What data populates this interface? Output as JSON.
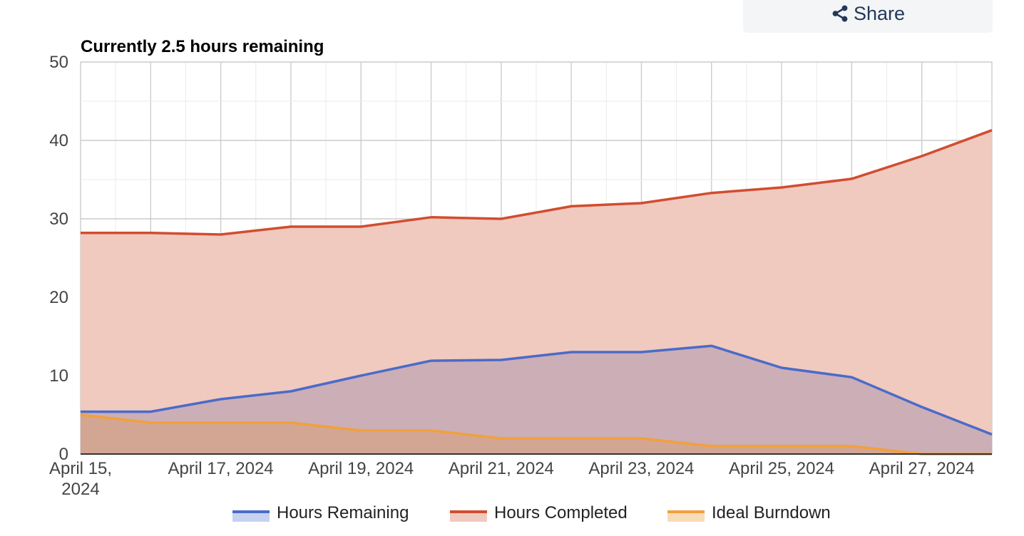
{
  "share": {
    "label": "Share",
    "icon": "share-icon"
  },
  "chart_data": {
    "type": "area",
    "title": "Currently 2.5 hours remaining",
    "xlabel": "",
    "ylabel": "",
    "ylim": [
      0,
      50
    ],
    "yticks": [
      0,
      10,
      20,
      30,
      40,
      50
    ],
    "grid": true,
    "legend_position": "bottom",
    "x": [
      "2024-04-15",
      "2024-04-16",
      "2024-04-17",
      "2024-04-18",
      "2024-04-19",
      "2024-04-20",
      "2024-04-21",
      "2024-04-22",
      "2024-04-23",
      "2024-04-24",
      "2024-04-25",
      "2024-04-26",
      "2024-04-27",
      "2024-04-28"
    ],
    "xtick_labels": [
      {
        "date": "2024-04-15",
        "lines": [
          "April 15,",
          "2024"
        ]
      },
      {
        "date": "2024-04-17",
        "lines": [
          "April 17, 2024"
        ]
      },
      {
        "date": "2024-04-19",
        "lines": [
          "April 19, 2024"
        ]
      },
      {
        "date": "2024-04-21",
        "lines": [
          "April 21, 2024"
        ]
      },
      {
        "date": "2024-04-23",
        "lines": [
          "April 23, 2024"
        ]
      },
      {
        "date": "2024-04-25",
        "lines": [
          "April 25, 2024"
        ]
      },
      {
        "date": "2024-04-27",
        "lines": [
          "April 27, 2024"
        ]
      }
    ],
    "series": [
      {
        "name": "Hours Completed",
        "color": "#d14d2f",
        "fill": "#f0c9bf",
        "values": [
          28.2,
          28.2,
          28.0,
          29.0,
          29.0,
          30.2,
          30.0,
          31.6,
          32.0,
          33.3,
          34.0,
          35.1,
          38.0,
          41.3
        ]
      },
      {
        "name": "Hours Remaining",
        "color": "#4a6bc9",
        "fill": "#c5a9b4",
        "values": [
          5.4,
          5.4,
          7.0,
          8.0,
          10.0,
          11.9,
          12.0,
          13.0,
          13.0,
          13.8,
          11.0,
          9.8,
          6.0,
          2.5
        ]
      },
      {
        "name": "Ideal Burndown",
        "color": "#f2a03c",
        "fill": "#d4a48e",
        "values": [
          5.0,
          4.0,
          4.0,
          4.0,
          3.0,
          3.0,
          2.0,
          2.0,
          2.0,
          1.0,
          1.0,
          1.0,
          0.0,
          0.0
        ]
      }
    ],
    "legend": [
      {
        "name": "Hours Remaining",
        "color": "#4a6bc9",
        "swatch_fill": "#c6d2f0"
      },
      {
        "name": "Hours Completed",
        "color": "#d14d2f",
        "swatch_fill": "#f0c9bf"
      },
      {
        "name": "Ideal Burndown",
        "color": "#f2a03c",
        "swatch_fill": "#f8dcb8"
      }
    ]
  }
}
